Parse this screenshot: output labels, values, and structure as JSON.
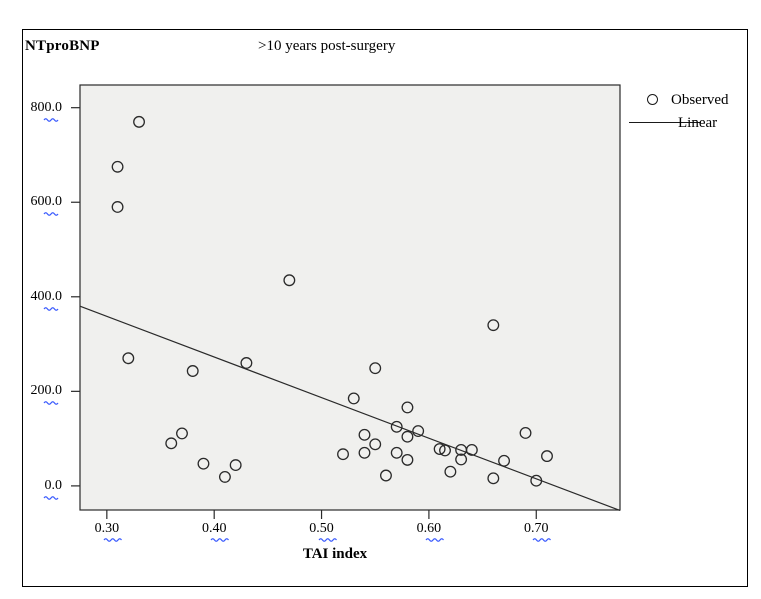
{
  "figure": {
    "title": "NTproBNP",
    "subtitle": ">10 years post-surgery"
  },
  "legend": {
    "position": "top-right-outside",
    "items": [
      {
        "label": "Observed",
        "marker": "open-circle-icon"
      },
      {
        "label": "Linear",
        "marker": "line-icon"
      }
    ]
  },
  "axes": {
    "x": {
      "title": "TAI index",
      "tick_labels": [
        "0.30",
        "0.40",
        "0.50",
        "0.60",
        "0.70"
      ],
      "tick_values": [
        0.3,
        0.4,
        0.5,
        0.6,
        0.7
      ]
    },
    "y": {
      "tick_labels": [
        "0.0",
        "200.0",
        "400.0",
        "600.0",
        "800.0"
      ],
      "tick_values": [
        0,
        200,
        400,
        600,
        800
      ]
    }
  },
  "colors": {
    "plot_background": "#f0f0ee",
    "frame": "#2a2a2a",
    "marker_stroke": "#2a2a2a",
    "regression_line": "#2a2a2a",
    "spellcheck_squiggle": "#3b5bfd",
    "text": "#000000"
  },
  "chart_data": {
    "type": "scatter",
    "title": "NTproBNP  >10 years post-surgery",
    "xlabel": "TAI index",
    "ylabel": "NTproBNP",
    "xlim": [
      0.275,
      0.778
    ],
    "ylim": [
      -51,
      848
    ],
    "grid": false,
    "legend_position": "top-right-outside",
    "series": [
      {
        "name": "Observed",
        "points": [
          [
            0.33,
            770
          ],
          [
            0.31,
            675
          ],
          [
            0.31,
            590
          ],
          [
            0.47,
            435
          ],
          [
            0.66,
            340
          ],
          [
            0.32,
            270
          ],
          [
            0.38,
            243
          ],
          [
            0.43,
            260
          ],
          [
            0.55,
            249
          ],
          [
            0.53,
            185
          ],
          [
            0.58,
            166
          ],
          [
            0.57,
            125
          ],
          [
            0.59,
            116
          ],
          [
            0.58,
            104
          ],
          [
            0.54,
            108
          ],
          [
            0.55,
            88
          ],
          [
            0.52,
            67
          ],
          [
            0.54,
            70
          ],
          [
            0.57,
            70
          ],
          [
            0.58,
            55
          ],
          [
            0.61,
            78
          ],
          [
            0.615,
            75
          ],
          [
            0.63,
            76
          ],
          [
            0.64,
            76
          ],
          [
            0.63,
            56
          ],
          [
            0.62,
            30
          ],
          [
            0.56,
            22
          ],
          [
            0.37,
            111
          ],
          [
            0.36,
            90
          ],
          [
            0.39,
            47
          ],
          [
            0.42,
            44
          ],
          [
            0.41,
            19
          ],
          [
            0.69,
            112
          ],
          [
            0.71,
            63
          ],
          [
            0.67,
            53
          ],
          [
            0.66,
            16
          ],
          [
            0.7,
            11
          ]
        ]
      },
      {
        "name": "Linear",
        "regression_line": {
          "x1": 0.275,
          "y1": 380,
          "x2": 0.778,
          "y2": -52
        }
      }
    ]
  }
}
